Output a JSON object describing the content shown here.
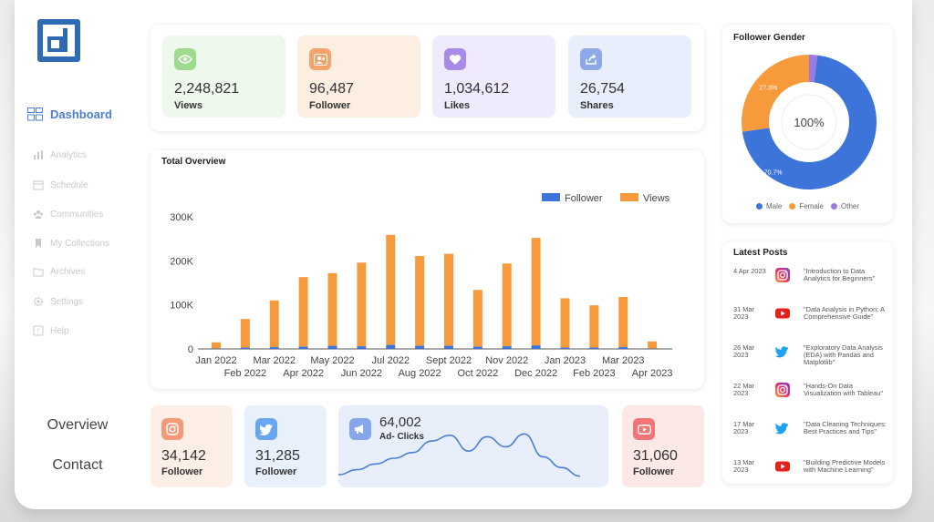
{
  "sidebar": {
    "items": [
      {
        "label": "Dashboard",
        "icon": "grid-icon"
      },
      {
        "label": "Analytics",
        "icon": "bar-chart-icon"
      },
      {
        "label": "Schedule",
        "icon": "calendar-icon"
      },
      {
        "label": "Communities",
        "icon": "people-icon"
      },
      {
        "label": "My Collections",
        "icon": "bookmark-icon"
      },
      {
        "label": "Archives",
        "icon": "folder-icon"
      },
      {
        "label": "Settings",
        "icon": "gear-icon"
      },
      {
        "label": "Help",
        "icon": "help-icon"
      }
    ],
    "overview_label": "Overview",
    "contact_label": "Contact"
  },
  "stats": [
    {
      "value": "2,248,821",
      "label": "Views",
      "icon": "eye-icon",
      "bg": "#eef8ec",
      "icon_bg": "#9ddc8f"
    },
    {
      "value": "96,487",
      "label": "Follower",
      "icon": "users-icon",
      "bg": "#fdeee2",
      "icon_bg": "#f4a46b"
    },
    {
      "value": "1,034,612",
      "label": "Likes",
      "icon": "heart-icon",
      "bg": "#efeafc",
      "icon_bg": "#a88ae8"
    },
    {
      "value": "26,754",
      "label": "Shares",
      "icon": "share-icon",
      "bg": "#e8eefb",
      "icon_bg": "#8ea9e8"
    }
  ],
  "overview": {
    "title": "Total Overview",
    "chart_data": {
      "type": "bar",
      "stacked": true,
      "categories": [
        "Jan 2022",
        "Feb 2022",
        "Mar 2022",
        "Apr 2022",
        "May 2022",
        "Jun 2022",
        "Jul 2022",
        "Aug 2022",
        "Sept 2022",
        "Oct 2022",
        "Nov 2022",
        "Dec 2022",
        "Jan 2023",
        "Feb 2023",
        "Mar 2023",
        "Apr 2023"
      ],
      "series": [
        {
          "name": "Follower",
          "color": "#3d74d9",
          "values": [
            1000,
            3000,
            4000,
            5000,
            7000,
            6000,
            9000,
            7000,
            7000,
            5000,
            6000,
            8000,
            3000,
            3000,
            4000,
            1000
          ]
        },
        {
          "name": "Views",
          "color": "#f79a3c",
          "values": [
            14000,
            65000,
            106000,
            158000,
            165000,
            190000,
            250000,
            204000,
            209000,
            129000,
            188000,
            244000,
            112000,
            96000,
            114000,
            16000
          ]
        }
      ],
      "yticks": [
        "0",
        "100K",
        "200K",
        "300K"
      ],
      "ylim": [
        0,
        300000
      ],
      "legend": "top-right"
    }
  },
  "gender": {
    "title": "Follower Gender",
    "center_label": "100%",
    "chart_data": {
      "type": "pie",
      "labels": [
        "Male",
        "Female",
        "Other"
      ],
      "values": [
        70.7,
        27.3,
        2.0
      ],
      "value_labels": [
        "70.7%",
        "27.3%",
        ""
      ],
      "colors": [
        "#3d74d9",
        "#f79a3c",
        "#9b7be0"
      ],
      "legend": "bottom"
    }
  },
  "posts": {
    "title": "Latest Posts",
    "items": [
      {
        "date": "4 Apr 2023",
        "platform": "instagram-icon",
        "title": "\"Introduction to Data Analytics for Beginners\""
      },
      {
        "date": "31 Mar 2023",
        "platform": "youtube-icon",
        "title": "\"Data Analysis in Python: A Comprehensive Guide\""
      },
      {
        "date": "26 Mar 2023",
        "platform": "twitter-icon",
        "title": "\"Exploratory Data Analysis (EDA) with Pandas and Matplotlib\""
      },
      {
        "date": "22 Mar 2023",
        "platform": "instagram-icon",
        "title": "\"Hands-On Data Visualization with Tableau\""
      },
      {
        "date": "17 Mar 2023",
        "platform": "twitter-icon",
        "title": "\"Data Cleaning Techniques: Best Practices and Tips\""
      },
      {
        "date": "13 Mar 2023",
        "platform": "youtube-icon",
        "title": "\"Building Predictive Models with Machine Learning\""
      }
    ]
  },
  "social": [
    {
      "value": "34,142",
      "label": "Follower",
      "icon": "instagram-icon",
      "bg": "#fdeee6",
      "icon_bg": "#f59a78"
    },
    {
      "value": "31,285",
      "label": "Follower",
      "icon": "twitter-icon",
      "bg": "#e8f0fc",
      "icon_bg": "#68a6ef"
    },
    {
      "value": "31,060",
      "label": "Follower",
      "icon": "youtube-icon",
      "bg": "#fde8e8",
      "icon_bg": "#f27474"
    }
  ],
  "ads": {
    "value": "64,002",
    "label": "Ad- Clicks",
    "icon": "megaphone-icon",
    "chart_data": {
      "type": "line",
      "values": [
        5,
        12,
        20,
        28,
        36,
        52,
        60,
        38,
        58,
        44,
        62,
        30,
        15,
        3
      ],
      "ylim": [
        0,
        70
      ]
    }
  },
  "colors": {
    "accent": "#4a7fd4",
    "follower": "#3d74d9",
    "views": "#f79a3c"
  }
}
